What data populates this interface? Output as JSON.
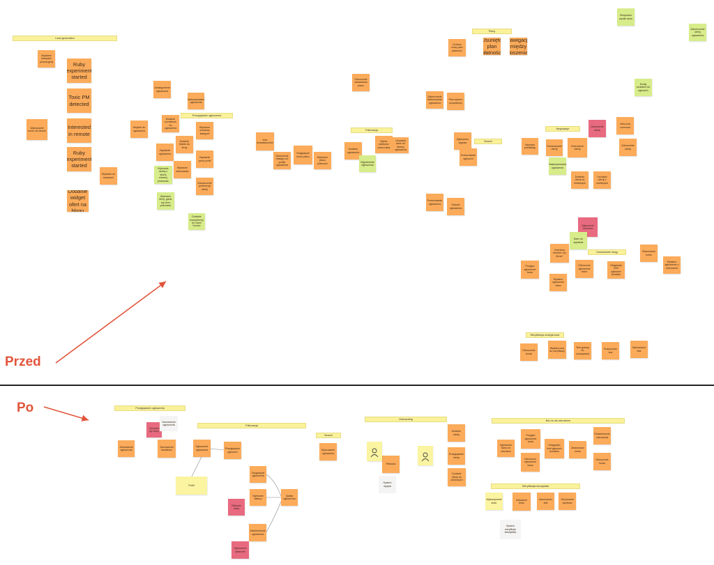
{
  "labels": {
    "before": "Przed",
    "after": "Po"
  },
  "colors": {
    "orange": "#fbab5a",
    "green": "#d7ec8a",
    "pink": "#e86a80",
    "yellow": "#fbf4a0",
    "arrow": "#e2553b"
  },
  "headers": [
    "Lead generation",
    "Przeglądanie ogłoszenia",
    "Plany",
    "Fakturacja",
    "Search",
    "Negocjacje",
    "Zamawianie ksiąg",
    "Weryfikacja umiejętności",
    "Przeglądanie ogłoszenia",
    "Fakturacja",
    "Search",
    "Onboarding",
    "Ból na nie-rekruterze",
    "Weryfikacja kandydata"
  ],
  "notes": {
    "before": [
      "Wysłanie kampanii promocyjnej",
      "Ruby experiment started",
      "Toxic PM detected",
      "Interested in remote",
      "Ruby experiment started",
      "Dodanie widget ofert na blogu",
      "Wykrywanie ruchu na stronie",
      "Wysłanie do kampanii",
      "Wejście do ogłoszenia",
      "Udostępnienie ogłoszenia",
      "Zaakceptowanie ogłoszenia",
      "Dodanie oczekiwań do ogłoszenia",
      "Dodanie linków do firmy",
      "Wybranie szukanej kategorii",
      "Zapisanie ogłoszenia",
      "Wybranie stanowiska",
      "Zapisanie przez profil",
      "Wybranie osoby z której chcemy pracować",
      "Wybranie firmy, gdzie się chce pracować",
      "Zaznaczenie preferencji oferty",
      "Dodanie kompetencji do Open Source",
      "Inne doświadczenie",
      "Odrzucenie dostępu do profilu ogłoszenia",
      "Osiągnięcie limitu planu",
      "Wybranie planu płatności",
      "Odrzucenie odnawiania planu",
      "Dodanie ogłoszenia",
      "Wypełnienie ogłoszenia",
      "Wybór płatności przez kartę",
      "Uzupełnij dane do faktury ogłoszenia",
      "Zakończenie fakturowania ogłoszenia",
      "Plan wyboru uzupełniony",
      "Dodano nowy plan płatności",
      "Usunięto plan płatności",
      "Nawigacja między ogłoszeniami",
      "Zgłoszenie wyjścia",
      "Przeszukanie ogłoszeń",
      "Przeszukanie ogłoszenia",
      "Ukrycie ogłoszenia",
      "Usunięto publikację",
      "Przeszukanie oferty",
      "Zaakceptowanie ogłoszenia",
      "Odrzucenie oferty",
      "Dodanie oferty do ulubionych",
      "Usunięto ofertę z ulubionych",
      "Odrzucenie oferty",
      "Sztuczna rozmowa",
      "Odrzucenie oferty",
      "Zgłoszenie rekrutera",
      "Dane do wysłania",
      "Oceniony rekruter czy firma?",
      "Przyjęto zgłoszenie bana",
      "Wysłano zgłoszenie bana",
      "Odrzucono zgłoszenie bana",
      "Osiągnięto limit zgłoszeń kontaktu",
      "Zbanowano konto",
      "Wysłano zgłoszenie o odrzucenie",
      "Odrzucenie konta",
      "Wysłano kod do weryfikacji",
      "Test gotowy do rozwiązania",
      "Rozpoczęto test",
      "Zakończono test",
      "Otrzymano wyniki testu",
      "Zakończenie oferty ogłoszenia",
      "Dodaj szukanie do ogłoszeń",
      "Saved search",
      "Produkt wyszukiwania"
    ],
    "after": [
      "Zamówienie ogłoszenia",
      "Zamiana typ firmy",
      "Zamówienie ogłoszenia",
      "Zamówienie dodatków",
      "Ogłoszenie ogłoszenia",
      "Przeglądanie ogłoszeń",
      "Osiągnięcie ogłoszenia",
      "Wybranie faktury",
      "Opłata ogłoszenia",
      "Płatność kartą",
      "Zatwierdzenie ogłoszenia",
      "Ogłoszenie opłacone",
      "Wyszukanie ogłoszenia",
      "Profil",
      "Płatność",
      "Dodanie oferty",
      "Przeglądanie oferty",
      "Dodanie oferty do ulubionych",
      "Zgłoszenie bana na rekrutera",
      "Przyjęto zgłoszenie bana",
      "Osiągnięto limit zgłoszeń kontaktu",
      "Zbanowano konto",
      "Odrzucono zgłoszenie bana",
      "Potwierdzenie odrzucenia",
      "Odrzucenie konta",
      "Wykonywanie kodu",
      "Zaliczenie testu",
      "Zakończono test",
      "Otrzymanie wyników",
      "System weryfikuje kandydata",
      "System wysyła"
    ]
  }
}
